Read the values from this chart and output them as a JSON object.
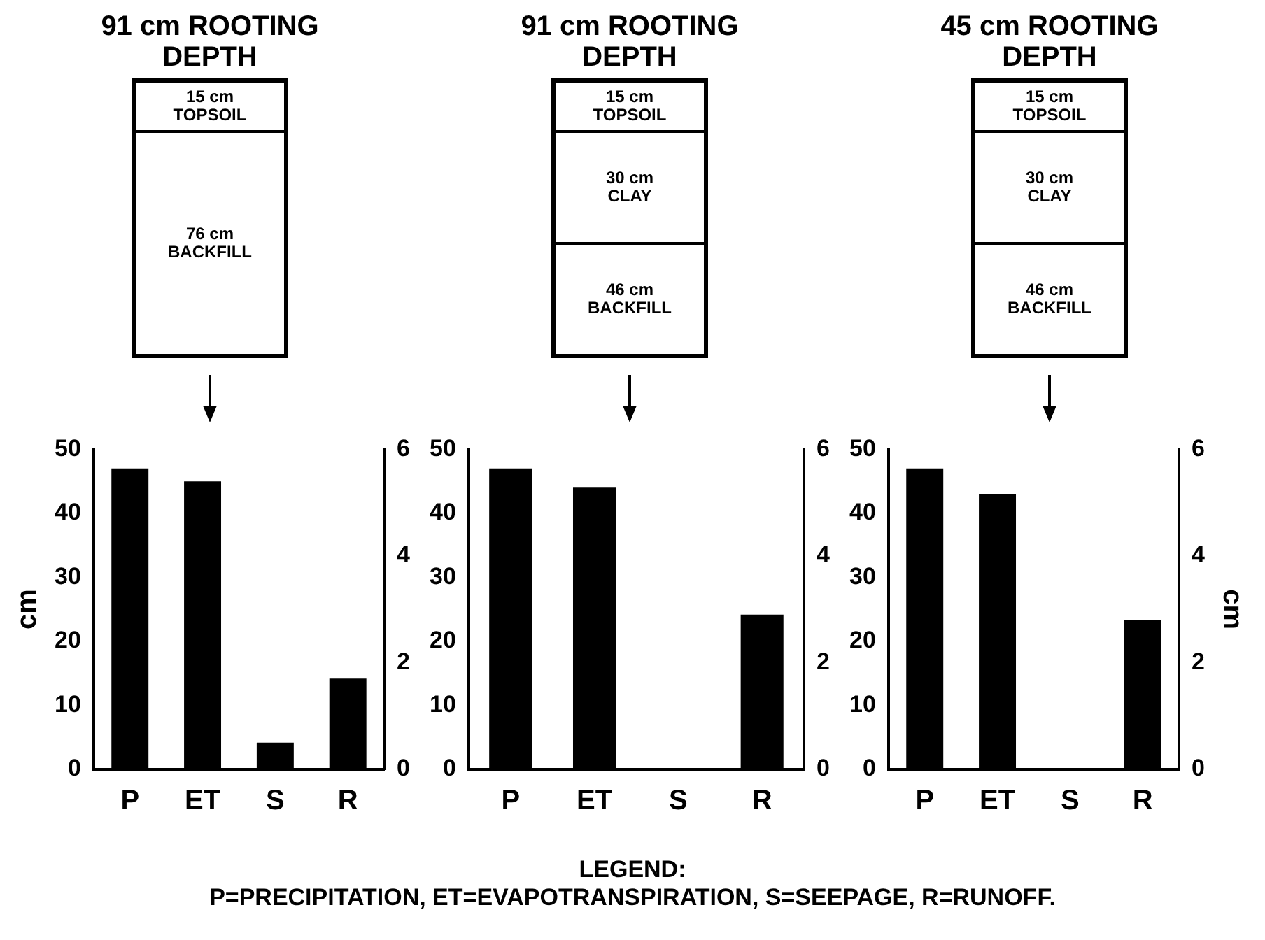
{
  "chart_data": [
    {
      "type": "bar",
      "title": "91 cm ROOTING DEPTH",
      "ylabel": "cm",
      "categories": [
        "P",
        "ET",
        "S",
        "R"
      ],
      "annotations": [
        "15 cm\nTOPSOIL",
        "76 cm\nBACKFILL"
      ],
      "series": [
        {
          "color": "#000000",
          "values": [
            47,
            45,
            null,
            null
          ]
        },
        {
          "color": "#000000",
          "axis": "y2",
          "values": [
            null,
            null,
            0.5,
            1.7
          ]
        }
      ],
      "ylim": [
        0,
        50
      ],
      "yticks": [
        0,
        10,
        20,
        30,
        40,
        50
      ],
      "y2lim": [
        0,
        6
      ],
      "y2ticks": [
        0,
        2,
        4,
        6
      ]
    },
    {
      "type": "bar",
      "title": "91 cm ROOTING DEPTH",
      "categories": [
        "P",
        "ET",
        "S",
        "R"
      ],
      "annotations": [
        "15 cm\nTOPSOIL",
        "30 cm\nCLAY",
        "46 cm\nBACKFILL"
      ],
      "series": [
        {
          "color": "#000000",
          "values": [
            47,
            44,
            null,
            null
          ]
        },
        {
          "color": "#000000",
          "axis": "y2",
          "values": [
            null,
            null,
            0,
            2.9
          ]
        }
      ],
      "ylim": [
        0,
        50
      ],
      "yticks": [
        0,
        10,
        20,
        30,
        40,
        50
      ],
      "y2lim": [
        0,
        6
      ],
      "y2ticks": [
        0,
        2,
        4,
        6
      ]
    },
    {
      "type": "bar",
      "title": "45 cm ROOTING DEPTH",
      "y2label": "cm",
      "categories": [
        "P",
        "ET",
        "S",
        "R"
      ],
      "annotations": [
        "15 cm\nTOPSOIL",
        "30 cm\nCLAY",
        "46 cm\nBACKFILL"
      ],
      "series": [
        {
          "color": "#000000",
          "values": [
            47,
            43,
            null,
            null
          ]
        },
        {
          "color": "#000000",
          "axis": "y2",
          "values": [
            null,
            null,
            0,
            2.8
          ]
        }
      ],
      "ylim": [
        0,
        50
      ],
      "yticks": [
        0,
        10,
        20,
        30,
        40,
        50
      ],
      "y2lim": [
        0,
        6
      ],
      "y2ticks": [
        0,
        2,
        4,
        6
      ]
    },
    {
      "type": "other",
      "title": "LEGEND:",
      "annotations": [
        "P=PRECIPITATION, ET=EVAPOTRANSPIRATION, S=SEEPAGE, R=RUNOFF."
      ]
    }
  ]
}
